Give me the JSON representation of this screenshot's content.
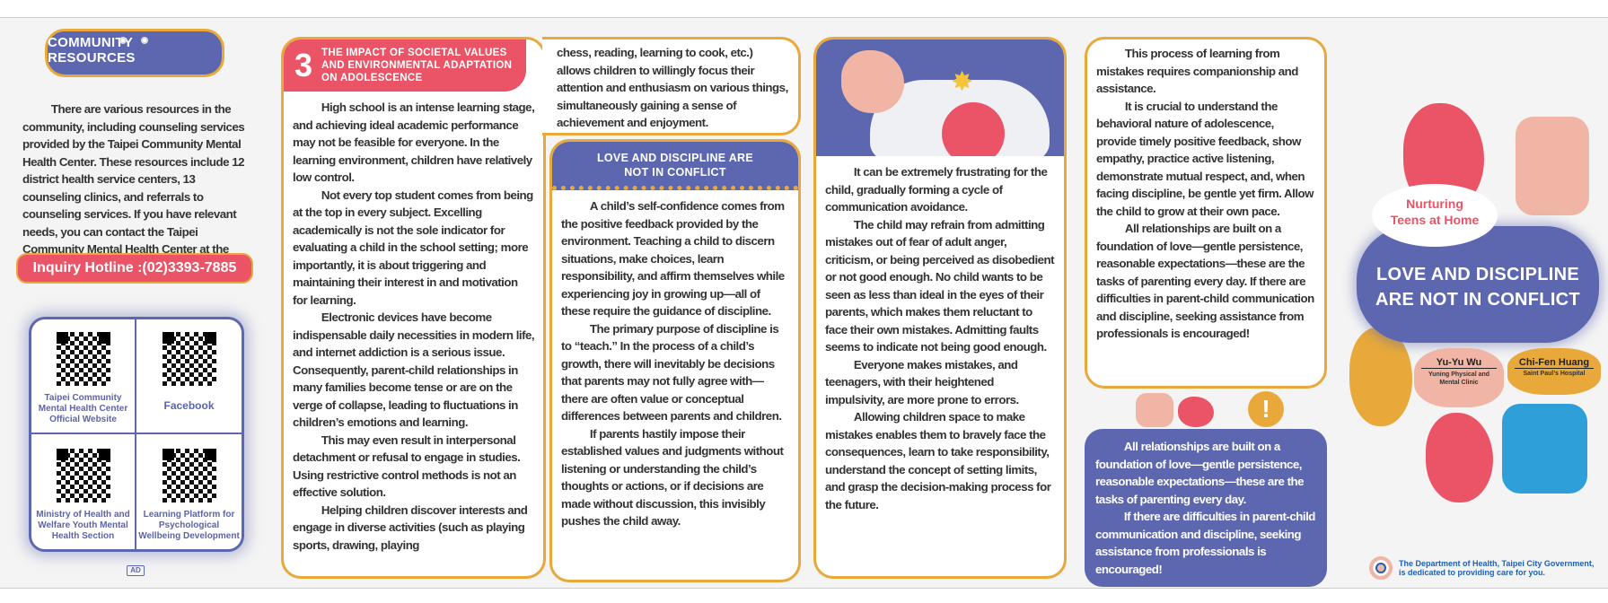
{
  "panel1": {
    "heading": "COMMUNITY RESOURCES",
    "body": "There are various resources in the community, including counseling services provided by the Taipei Community Mental Health Center. These resources include 12 district health service centers, 13 counseling clinics, and referrals to counseling services. If you have relevant needs, you can contact the Taipei Community Mental Health Center at the following inquiry hotline:",
    "hotline": "Inquiry Hotline :(02)3393-7885",
    "qr_codes": [
      {
        "label": "Taipei Community Mental Health Center Official Website"
      },
      {
        "label": "Facebook"
      },
      {
        "label": "Ministry of Health and Welfare Youth Mental Health Section"
      },
      {
        "label": "Learning Platform for Psychological Wellbeing Development"
      }
    ],
    "ad_mark": "AD"
  },
  "section3": {
    "number": "3",
    "heading": "THE IMPACT OF SOCIETAL VALUES AND ENVIRONMENTAL ADAPTATION ON ADOLESCENCE",
    "paragraphs": [
      "High school is an intense learning stage, and achieving ideal academic performance may not be feasible for everyone. In the learning environment, children have relatively low control.",
      "Not every top student comes from being at the top in every subject. Excelling academically is not the sole indicator for evaluating a child in the school setting; more importantly, it is about triggering and maintaining their interest in and motivation for learning.",
      "Electronic devices have become indispensable daily necessities in modern life, and internet addiction is a serious issue. Consequently, parent-child relationships in many families become tense or are on the verge of collapse, leading to fluctuations in children’s emotions and learning.",
      "This may even result in interpersonal detachment or refusal to engage in studies. Using restrictive control methods is not an effective solution.",
      "Helping children discover interests and engage in diverse activities (such as playing sports, drawing, playing"
    ],
    "continuation": "chess, reading, learning to cook, etc.) allows children to willingly focus their attention and enthusiasm on various things, simultaneously gaining a sense of achievement and enjoyment."
  },
  "love": {
    "heading": "LOVE AND DISCIPLINE ARE NOT IN CONFLICT",
    "paragraphs": [
      "A child’s self-confidence comes from the positive feedback provided by the environment. Teaching a child to discern situations, make choices, learn responsibility, and affirm themselves while experiencing joy in growing up—all of these require the guidance of discipline.",
      "The primary purpose of discipline is to “teach.” In the process of a child’s growth, there will inevitably be decisions that parents may not fully agree with—there are often value or conceptual differences between parents and children.",
      "If parents hastily impose their established values and judgments without listening or understanding the child’s thoughts or actions, or if decisions are made without discussion, this invisibly pushes the child away."
    ]
  },
  "column4": {
    "paragraphs": [
      "It can be extremely frustrating for the child, gradually forming a cycle of communication avoidance.",
      "The child may refrain from admitting mistakes out of fear of adult anger, criticism, or being perceived as disobedient or not good enough. No child wants to be seen as less than ideal in the eyes of their parents, which makes them reluctant to face their own mistakes. Admitting faults seems to indicate not being good enough.",
      "Everyone makes mistakes, and teenagers, with their heightened impulsivity, are more prone to errors.",
      "Allowing children space to make mistakes enables them to bravely face the consequences, learn to take responsibility, understand the concept of setting limits, and grasp the decision-making process for the future."
    ]
  },
  "column5": {
    "paragraphs": [
      "This process of learning from mistakes requires companionship and assistance.",
      "It is crucial to understand the behavioral nature of adolescence, provide timely positive feedback, show empathy, practice active listening, demonstrate mutual respect, and, when facing discipline, be gentle yet firm. Allow the child to grow at their own pace.",
      "All relationships are built on a foundation of love—gentle persistence, reasonable expectations—these are the tasks of parenting every day. If there are difficulties in parent-child communication and discipline, seeking assistance from professionals is encouraged!"
    ],
    "exclamation": "!",
    "callout": [
      "All relationships are built on a foundation of love—gentle persistence, reasonable expectations—these are the tasks of parenting every day.",
      "If there are difficulties in parent-child communication and discipline, seeking assistance from professionals is encouraged!"
    ]
  },
  "cover": {
    "subtitle": "Nurturing Teens at Home",
    "title": "LOVE AND DISCIPLINE ARE NOT IN CONFLICT",
    "authors": [
      {
        "name": "Yu-Yu Wu",
        "affiliation": "Yuning Physical and Mental Clinic"
      },
      {
        "name": "Chi-Fen Huang",
        "affiliation": "Saint Paul’s Hospital"
      }
    ],
    "footer": "The Department of Health, Taipei City Government, is dedicated to providing care for you."
  },
  "colors": {
    "purple": "#5d67b0",
    "red": "#ea5466",
    "orange": "#e8a93a",
    "pink": "#f0b5a5",
    "blue": "#2e9fd9",
    "footer_blue": "#1f5fb5"
  }
}
